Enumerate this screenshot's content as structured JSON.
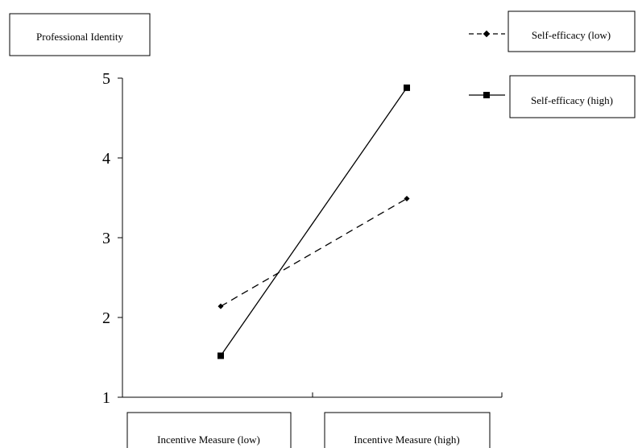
{
  "chart_data": {
    "type": "line",
    "title": "",
    "ylabel": "Professional Identity",
    "xlabel": "",
    "categories": [
      "Incentive Measure (low)",
      "Incentive Measure (high)"
    ],
    "ylim": [
      1,
      5
    ],
    "yticks": [
      "1",
      "2",
      "3",
      "4",
      "5"
    ],
    "grid": false,
    "legend_position": "top-right",
    "series": [
      {
        "name": "Self-efficacy (low)",
        "values": [
          2.14,
          3.49
        ],
        "line_style": "dashed",
        "marker": "diamond",
        "color": "#000000"
      },
      {
        "name": "Self-efficacy (high)",
        "values": [
          1.52,
          4.88
        ],
        "line_style": "solid",
        "marker": "square",
        "color": "#000000"
      }
    ]
  }
}
